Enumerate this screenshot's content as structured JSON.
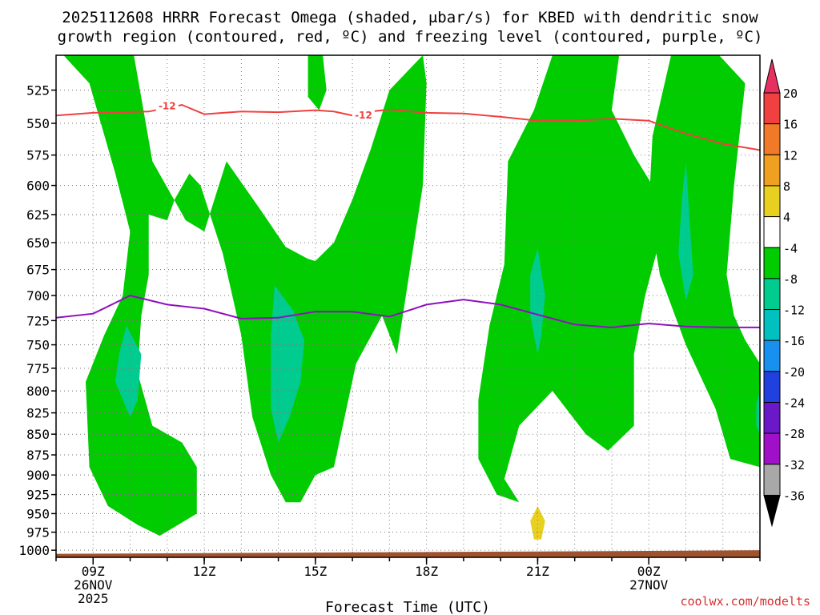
{
  "chart_data": {
    "type": "time-height contour",
    "title_line1": "2025112608 HRRR Forecast Omega (shaded, μbar/s) for KBED with dendritic snow",
    "title_line2": "growth region (contoured, red, ºC) and freezing level (contoured, purple, ºC)",
    "xlabel": "Forecast Time (UTC)",
    "credit": "coolwx.com/modelts",
    "x_range_hours": [
      8,
      27
    ],
    "y_axis": {
      "type": "pressure",
      "unit": "hPa",
      "range": [
        500,
        1010
      ],
      "ticks": [
        525,
        550,
        575,
        600,
        625,
        650,
        675,
        700,
        725,
        750,
        775,
        800,
        825,
        850,
        875,
        900,
        925,
        950,
        975,
        1000
      ]
    },
    "x_ticks": [
      {
        "hour": 9,
        "label": "09Z",
        "date": "26NOV",
        "year": "2025"
      },
      {
        "hour": 12,
        "label": "12Z"
      },
      {
        "hour": 15,
        "label": "15Z"
      },
      {
        "hour": 18,
        "label": "18Z"
      },
      {
        "hour": 21,
        "label": "21Z"
      },
      {
        "hour": 24,
        "label": "00Z",
        "date": "27NOV"
      }
    ],
    "colorbar": [
      {
        "label": "20",
        "color": "#e83060"
      },
      {
        "label": "16",
        "color": "#f04040"
      },
      {
        "label": "12",
        "color": "#f07a28"
      },
      {
        "label": "8",
        "color": "#f0a020"
      },
      {
        "label": "4",
        "color": "#e8d020"
      },
      {
        "label": "-4",
        "color": "#ffffff"
      },
      {
        "label": "-8",
        "color": "#00cc00"
      },
      {
        "label": "-12",
        "color": "#00cc90"
      },
      {
        "label": "-16",
        "color": "#00c0c0"
      },
      {
        "label": "-20",
        "color": "#1890f0"
      },
      {
        "label": "-24",
        "color": "#2040e0"
      },
      {
        "label": "-28",
        "color": "#6a18c8"
      },
      {
        "label": "-32",
        "color": "#a010c8"
      },
      {
        "label": "-36",
        "color": "#a8a8a8"
      }
    ],
    "colors": {
      "omega_neg8": "#00cc00",
      "omega_neg12": "#00cc90",
      "omega_pos4": "#e8d020",
      "dgz": "#f04040",
      "freezing": "#9010c0",
      "terrain": "#a0522d",
      "grid": "#777777"
    },
    "dgz_contour": {
      "label": "-12",
      "points": [
        [
          8,
          544
        ],
        [
          9,
          542
        ],
        [
          10.5,
          541
        ],
        [
          11.4,
          536
        ],
        [
          12,
          543
        ],
        [
          13,
          541
        ],
        [
          14,
          541.5
        ],
        [
          15,
          540
        ],
        [
          15.5,
          541
        ],
        [
          16,
          544
        ],
        [
          16.5,
          541
        ],
        [
          17,
          539.5
        ],
        [
          18,
          542
        ],
        [
          19,
          542.5
        ],
        [
          20,
          545
        ],
        [
          21,
          548
        ],
        [
          22,
          548
        ],
        [
          23,
          546.5
        ],
        [
          24,
          548
        ],
        [
          24.5,
          553
        ],
        [
          25,
          558
        ],
        [
          26,
          566
        ],
        [
          27,
          571
        ]
      ]
    },
    "freezing_contour": {
      "points": [
        [
          8,
          722
        ],
        [
          9,
          718
        ],
        [
          10,
          700
        ],
        [
          11,
          709
        ],
        [
          12,
          713
        ],
        [
          13,
          723
        ],
        [
          14,
          722
        ],
        [
          15,
          716
        ],
        [
          16,
          716
        ],
        [
          17,
          721
        ],
        [
          18,
          709
        ],
        [
          19,
          704
        ],
        [
          20,
          709
        ],
        [
          21,
          719
        ],
        [
          22,
          729
        ],
        [
          23,
          732
        ],
        [
          24,
          728
        ],
        [
          25,
          731
        ],
        [
          26,
          732
        ],
        [
          27,
          732
        ]
      ]
    },
    "shaded_regions": [
      {
        "value": -8,
        "points": [
          [
            8.2,
            500
          ],
          [
            10.1,
            500
          ],
          [
            10.6,
            580
          ],
          [
            11.5,
            630
          ],
          [
            12,
            640
          ],
          [
            12.6,
            580
          ],
          [
            13.5,
            620
          ],
          [
            14.2,
            654
          ],
          [
            14.8,
            665
          ],
          [
            15,
            667
          ],
          [
            15.5,
            650
          ],
          [
            16,
            612
          ],
          [
            16.5,
            570
          ],
          [
            17,
            525
          ],
          [
            17.9,
            500
          ],
          [
            18,
            520
          ],
          [
            17.9,
            600
          ],
          [
            17.2,
            760
          ],
          [
            16.8,
            720
          ],
          [
            16.1,
            770
          ],
          [
            15.5,
            890
          ],
          [
            15.0,
            900
          ],
          [
            14.6,
            935
          ],
          [
            14.2,
            935
          ],
          [
            13.8,
            900
          ],
          [
            13.3,
            830
          ],
          [
            13.0,
            740
          ],
          [
            12.5,
            660
          ],
          [
            11.9,
            600
          ],
          [
            11.6,
            590
          ],
          [
            11.2,
            612
          ],
          [
            11.0,
            630
          ],
          [
            10.5,
            625
          ],
          [
            10.5,
            680
          ],
          [
            10.3,
            720
          ],
          [
            10.2,
            780
          ],
          [
            10.6,
            840
          ],
          [
            11.4,
            860
          ],
          [
            11.8,
            890
          ],
          [
            11.8,
            950
          ],
          [
            10.8,
            980
          ],
          [
            10.2,
            965
          ],
          [
            9.4,
            940
          ],
          [
            8.9,
            890
          ],
          [
            8.8,
            790
          ],
          [
            9.3,
            740
          ],
          [
            9.8,
            700
          ],
          [
            10.0,
            640
          ],
          [
            9.6,
            590
          ],
          [
            8.9,
            520
          ]
        ]
      },
      {
        "value": -8,
        "points": [
          [
            14.8,
            500
          ],
          [
            15.2,
            500
          ],
          [
            15.3,
            525
          ],
          [
            15.1,
            540
          ],
          [
            14.8,
            530
          ]
        ]
      },
      {
        "value": -8,
        "points": [
          [
            21.4,
            500
          ],
          [
            23.2,
            500
          ],
          [
            23.0,
            540
          ],
          [
            23.6,
            575
          ],
          [
            24.1,
            600
          ],
          [
            24.2,
            660
          ],
          [
            23.9,
            700
          ],
          [
            23.6,
            760
          ],
          [
            23.6,
            840
          ],
          [
            22.9,
            870
          ],
          [
            22.3,
            850
          ],
          [
            21.4,
            800
          ],
          [
            20.5,
            840
          ],
          [
            20.1,
            905
          ],
          [
            20.5,
            935
          ],
          [
            19.9,
            925
          ],
          [
            19.4,
            880
          ],
          [
            19.4,
            810
          ],
          [
            19.7,
            730
          ],
          [
            20.1,
            670
          ],
          [
            20.2,
            580
          ],
          [
            20.9,
            540
          ]
        ]
      },
      {
        "value": -8,
        "points": [
          [
            24.6,
            500
          ],
          [
            25.9,
            500
          ],
          [
            26.6,
            520
          ],
          [
            26.3,
            600
          ],
          [
            26.1,
            680
          ],
          [
            26.3,
            720
          ],
          [
            26.6,
            745
          ],
          [
            27,
            770
          ],
          [
            27,
            890
          ],
          [
            26.6,
            885
          ],
          [
            26.2,
            880
          ],
          [
            25.8,
            820
          ],
          [
            25.0,
            750
          ],
          [
            24.3,
            680
          ],
          [
            24.0,
            620
          ],
          [
            24.1,
            560
          ]
        ]
      },
      {
        "value": -12,
        "points": [
          [
            9.9,
            730
          ],
          [
            10.3,
            760
          ],
          [
            10.2,
            810
          ],
          [
            10.0,
            830
          ],
          [
            9.6,
            790
          ],
          [
            9.7,
            760
          ]
        ]
      },
      {
        "value": -12,
        "points": [
          [
            13.9,
            690
          ],
          [
            14.4,
            715
          ],
          [
            14.7,
            745
          ],
          [
            14.6,
            790
          ],
          [
            14.3,
            830
          ],
          [
            14.0,
            860
          ],
          [
            13.8,
            820
          ],
          [
            13.8,
            740
          ]
        ]
      },
      {
        "value": -12,
        "points": [
          [
            21.0,
            655
          ],
          [
            21.2,
            700
          ],
          [
            21.1,
            740
          ],
          [
            21.0,
            760
          ],
          [
            20.8,
            720
          ],
          [
            20.8,
            680
          ]
        ]
      },
      {
        "value": -12,
        "points": [
          [
            25.0,
            580
          ],
          [
            25.1,
            630
          ],
          [
            25.2,
            680
          ],
          [
            25.0,
            705
          ],
          [
            24.8,
            660
          ],
          [
            24.9,
            610
          ]
        ]
      },
      {
        "value": -12,
        "points": [
          [
            27,
            800
          ],
          [
            27,
            850
          ],
          [
            26.9,
            840
          ],
          [
            26.9,
            815
          ]
        ]
      },
      {
        "value": 4,
        "points": [
          [
            21.0,
            940
          ],
          [
            21.2,
            960
          ],
          [
            21.1,
            985
          ],
          [
            20.9,
            985
          ],
          [
            20.8,
            960
          ]
        ]
      }
    ]
  }
}
